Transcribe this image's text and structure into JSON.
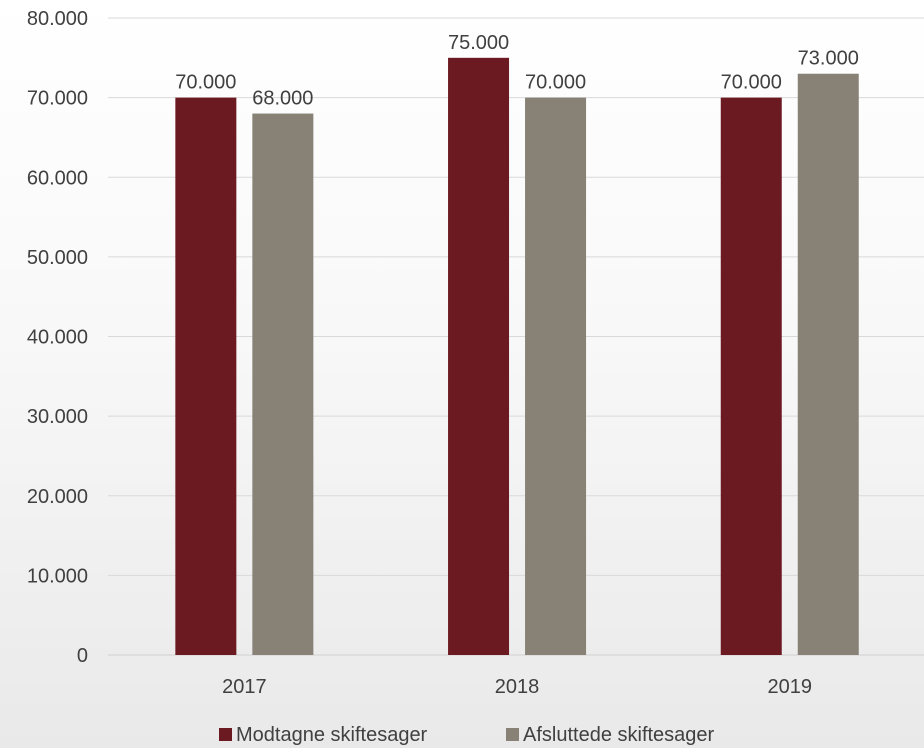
{
  "chart_data": {
    "type": "bar",
    "categories": [
      "2017",
      "2018",
      "2019"
    ],
    "series": [
      {
        "name": "Modtagne skiftesager",
        "values": [
          70000,
          75000,
          70000
        ],
        "color": "#6B1A22"
      },
      {
        "name": "Afsluttede skiftesager",
        "values": [
          68000,
          70000,
          73000
        ],
        "color": "#878176"
      }
    ],
    "data_labels": [
      [
        "70.000",
        "75.000",
        "70.000"
      ],
      [
        "68.000",
        "70.000",
        "73.000"
      ]
    ],
    "y_ticks": [
      {
        "value": 0,
        "label": "0"
      },
      {
        "value": 10000,
        "label": "10.000"
      },
      {
        "value": 20000,
        "label": "20.000"
      },
      {
        "value": 30000,
        "label": "30.000"
      },
      {
        "value": 40000,
        "label": "40.000"
      },
      {
        "value": 50000,
        "label": "50.000"
      },
      {
        "value": 60000,
        "label": "60.000"
      },
      {
        "value": 70000,
        "label": "70.000"
      },
      {
        "value": 80000,
        "label": "80.000"
      }
    ],
    "ylim": [
      0,
      80000
    ],
    "title": "",
    "xlabel": "",
    "ylabel": "",
    "grid": true,
    "legend_position": "bottom",
    "gridline_color": "#d9d9d9"
  }
}
